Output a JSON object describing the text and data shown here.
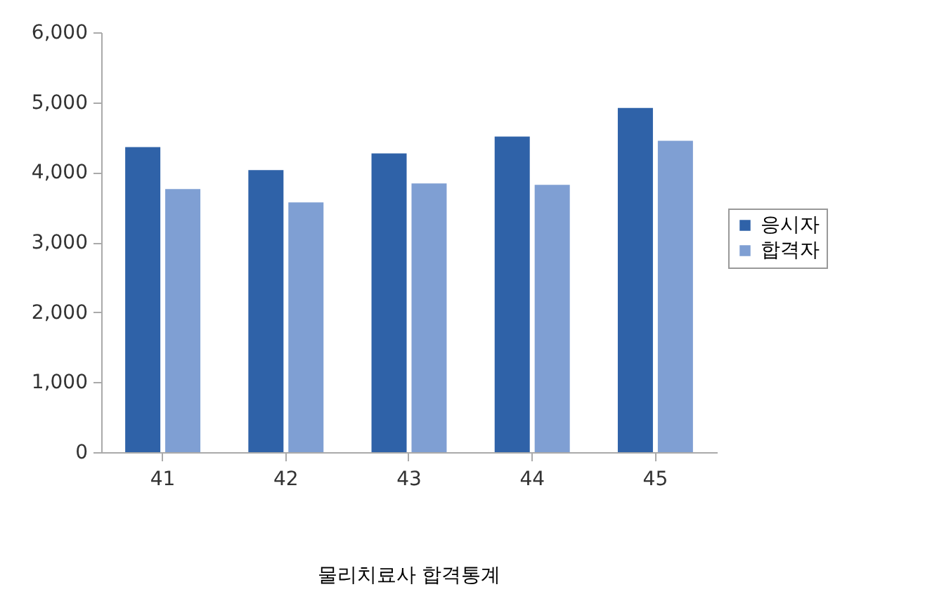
{
  "chart_data": {
    "type": "bar",
    "title": "물리치료사 합격통계",
    "categories": [
      "41",
      "42",
      "43",
      "44",
      "45"
    ],
    "series": [
      {
        "name": "응시자",
        "color": "#2f62a8",
        "values": [
          4360,
          4030,
          4270,
          4510,
          4920
        ]
      },
      {
        "name": "합격자",
        "color": "#7f9fd3",
        "values": [
          3760,
          3570,
          3840,
          3820,
          4450
        ]
      }
    ],
    "ylim": [
      0,
      6000
    ],
    "yticks": [
      {
        "value": 0,
        "label": "0"
      },
      {
        "value": 1000,
        "label": "1,000"
      },
      {
        "value": 2000,
        "label": "2,000"
      },
      {
        "value": 3000,
        "label": "3,000"
      },
      {
        "value": 4000,
        "label": "4,000"
      },
      {
        "value": 5000,
        "label": "5,000"
      },
      {
        "value": 6000,
        "label": "6,000"
      }
    ],
    "grid": false,
    "legend": "right"
  }
}
